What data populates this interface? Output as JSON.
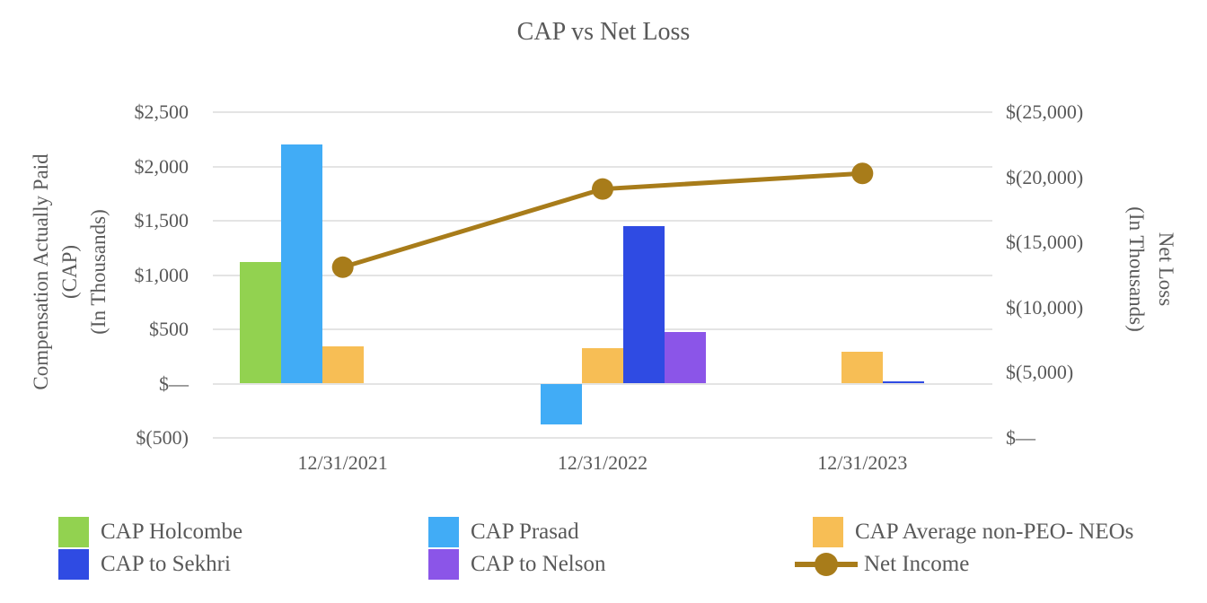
{
  "style": {
    "text_color": "#595959",
    "grid_color": "#E4E4E4",
    "background": "#FFFFFF"
  },
  "chart_data": {
    "type": "bar-line-combo",
    "title": "CAP vs Net Loss",
    "categories": [
      "12/31/2021",
      "12/31/2022",
      "12/31/2023"
    ],
    "grid": true,
    "legend_position": "bottom",
    "left_axis": {
      "title_lines": [
        "Compensation Actually Paid",
        "(CAP)",
        "(In Thousands)"
      ],
      "tick_labels": [
        "$2,500",
        "$2,000",
        "$1,500",
        "$1,000",
        "$500",
        "$—",
        "$(500)"
      ],
      "max": 2500,
      "min": -500,
      "step": 500
    },
    "right_axis": {
      "title_lines": [
        "Net Loss",
        "(In Thousands)"
      ],
      "tick_labels": [
        "$(25,000)",
        "$(20,000)",
        "$(15,000)",
        "$(10,000)",
        "$(5,000)",
        "$—"
      ],
      "top_value": -25000,
      "bottom_value": 0,
      "step": 5000
    },
    "series": [
      {
        "name": "CAP Holcombe",
        "type": "bar",
        "axis": "left",
        "color": "#92D250",
        "values": [
          1120,
          null,
          null
        ]
      },
      {
        "name": "CAP Prasad",
        "type": "bar",
        "axis": "left",
        "color": "#41ACF6",
        "values": [
          2200,
          -375,
          null
        ]
      },
      {
        "name": "CAP Average non-PEO- NEOs",
        "type": "bar",
        "axis": "left",
        "color": "#F7BE55",
        "values": [
          340,
          325,
          290
        ]
      },
      {
        "name": "CAP to Sekhri",
        "type": "bar",
        "axis": "left",
        "color": "#2F4BE3",
        "values": [
          null,
          1450,
          20
        ]
      },
      {
        "name": "CAP to Nelson",
        "type": "bar",
        "axis": "left",
        "color": "#8B55E8",
        "values": [
          null,
          475,
          null
        ]
      },
      {
        "name": "Net Income",
        "type": "line",
        "axis": "right",
        "color": "#A87C1A",
        "values": [
          -13100,
          -19100,
          -20300
        ]
      }
    ]
  }
}
